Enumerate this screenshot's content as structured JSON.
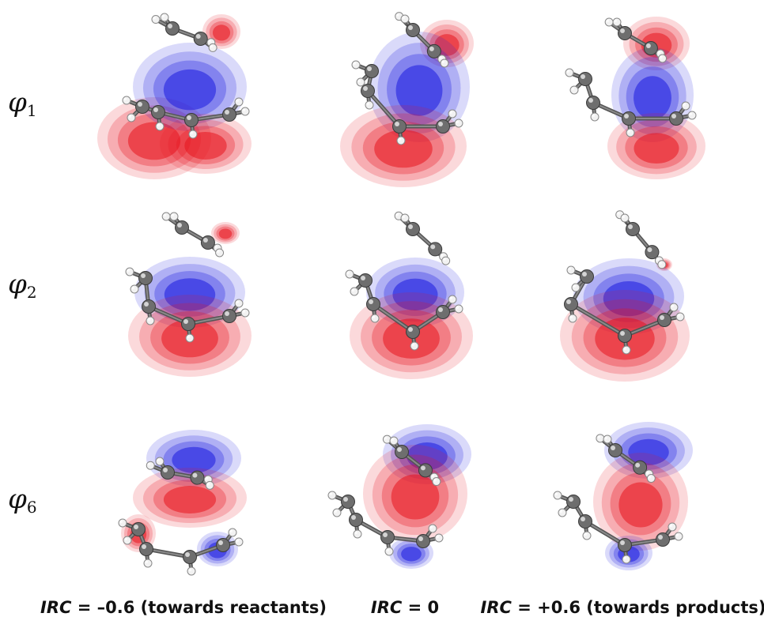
{
  "rows": [
    {
      "symbol": "φ",
      "index": "1"
    },
    {
      "symbol": "φ",
      "index": "2"
    },
    {
      "symbol": "φ",
      "index": "6"
    }
  ],
  "columns": [
    {
      "var": "IRC",
      "expr": " = –0.6 (towards reactants)"
    },
    {
      "var": "IRC",
      "expr": " = 0"
    },
    {
      "var": "IRC",
      "expr": " = +0.6 (towards products)"
    }
  ],
  "colors": {
    "positive_lobe": "#e8141e",
    "negative_lobe": "#1a1ae0",
    "carbon_atom": "#6e6e6e",
    "hydrogen_atom": "#f2f2f2"
  }
}
